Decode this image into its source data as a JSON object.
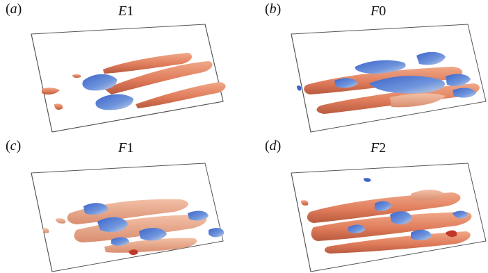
{
  "figure": {
    "panels": [
      {
        "tag": "a",
        "case_letter": "E",
        "case_number": "1"
      },
      {
        "tag": "b",
        "case_letter": "F",
        "case_number": "0"
      },
      {
        "tag": "c",
        "case_letter": "F",
        "case_number": "1"
      },
      {
        "tag": "d",
        "case_letter": "F",
        "case_number": "2"
      }
    ],
    "colors": {
      "positive_isosurface": "#e0886a",
      "negative_isosurface": "#5a7ed0",
      "box_edges": "#555555"
    }
  }
}
